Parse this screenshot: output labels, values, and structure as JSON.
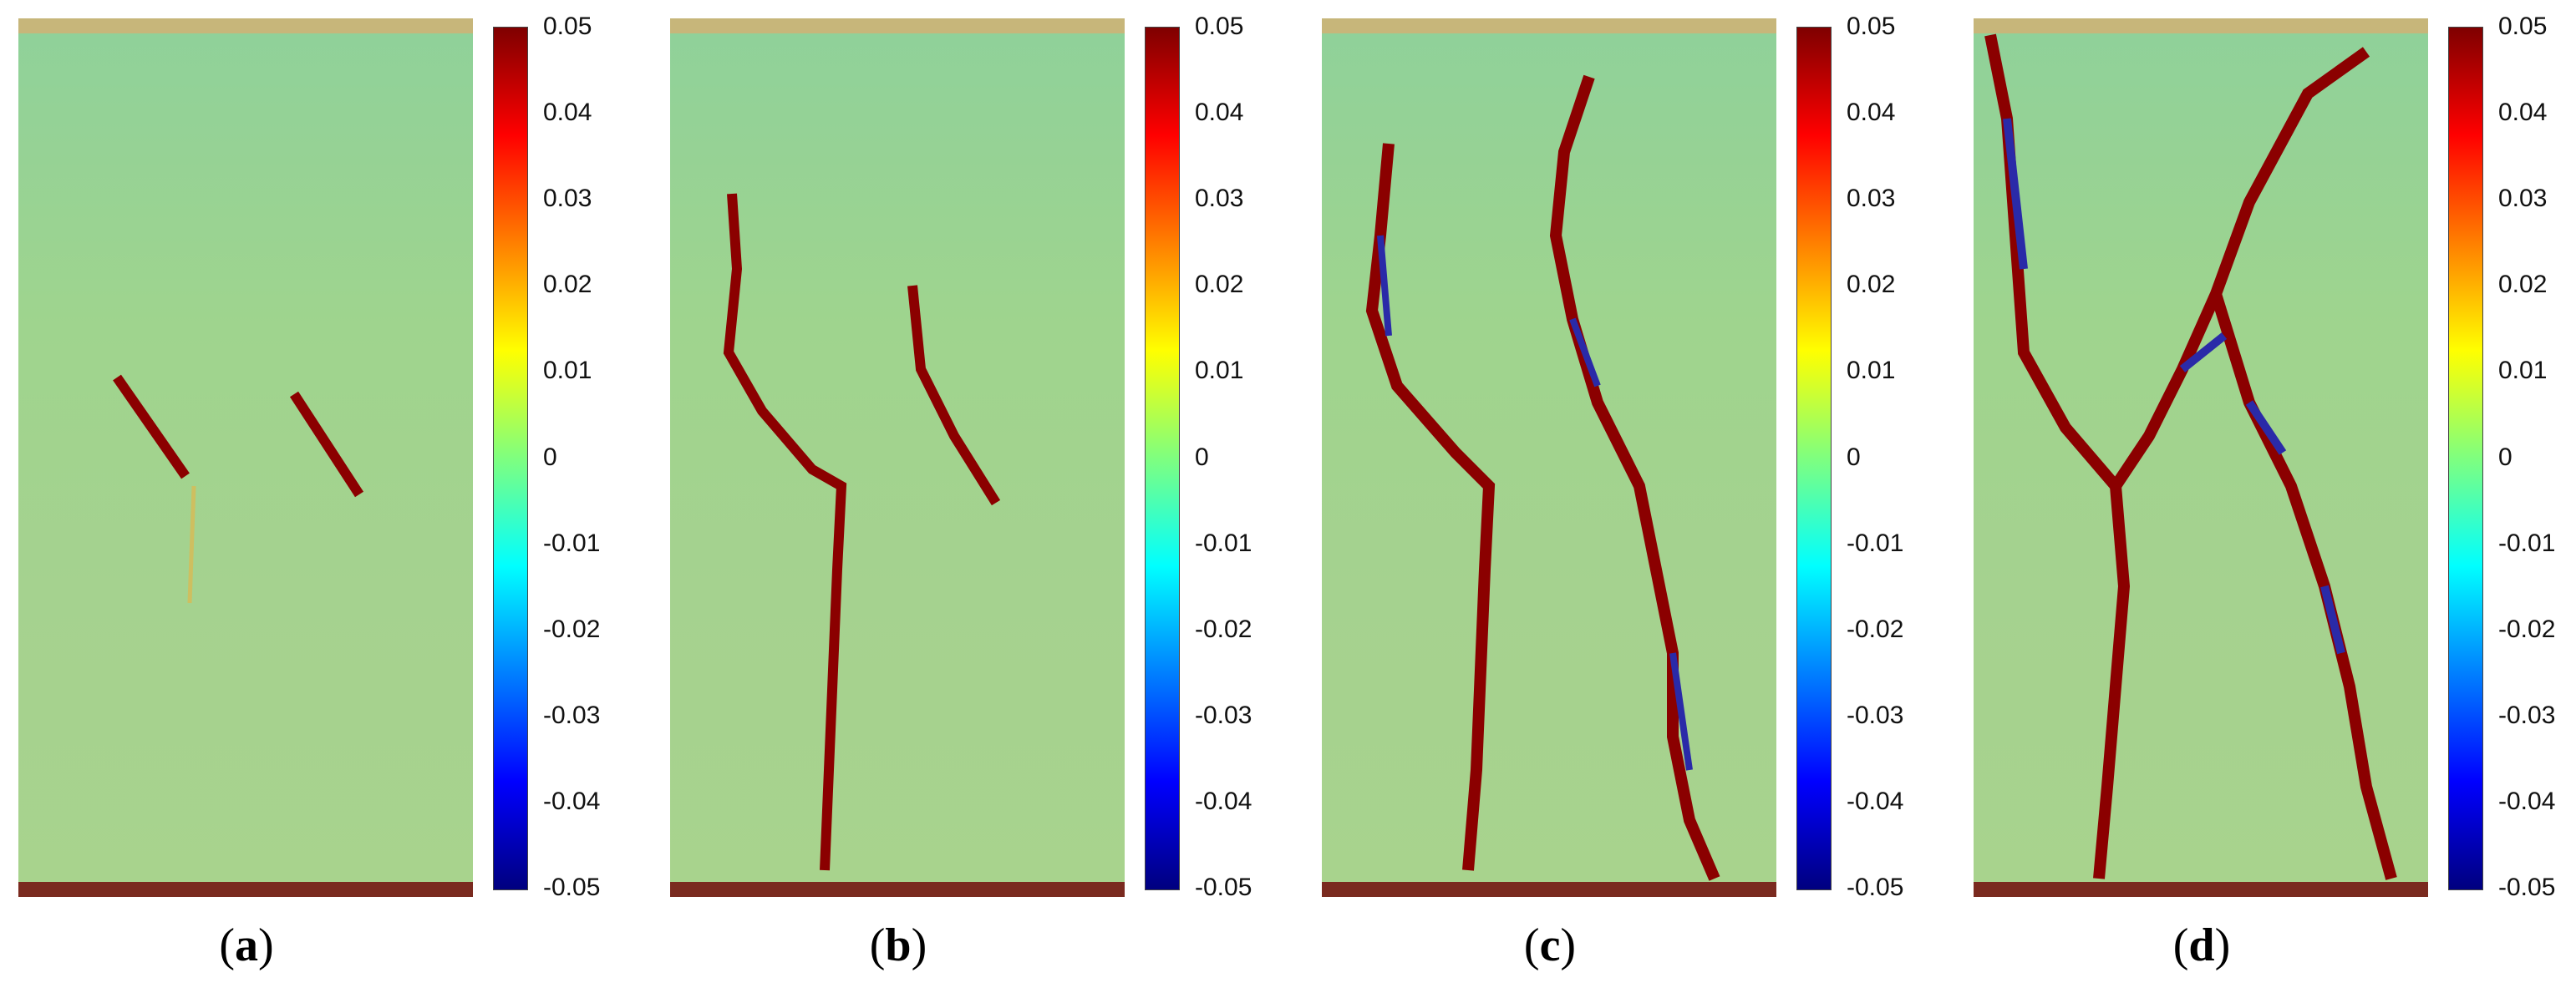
{
  "figure": {
    "colorbar": {
      "min": -0.05,
      "max": 0.05,
      "ticks": [
        "0.05",
        "0.04",
        "0.03",
        "0.02",
        "0.01",
        "0",
        "-0.01",
        "-0.02",
        "-0.03",
        "-0.04",
        "-0.05"
      ],
      "colors": [
        "#7f0000",
        "#ff0000",
        "#ff7f00",
        "#ffff00",
        "#7fff7f",
        "#00ffff",
        "#007fff",
        "#0000ff",
        "#00007f"
      ]
    },
    "panels": [
      {
        "open": "(",
        "letter": "a",
        "close": ")"
      },
      {
        "open": "(",
        "letter": "b",
        "close": ")"
      },
      {
        "open": "(",
        "letter": "c",
        "close": ")"
      },
      {
        "open": "(",
        "letter": "d",
        "close": ")"
      }
    ],
    "crack_color": "#8b0000",
    "damage_color": "#2a2aa8",
    "background_color": "#a0d290"
  }
}
